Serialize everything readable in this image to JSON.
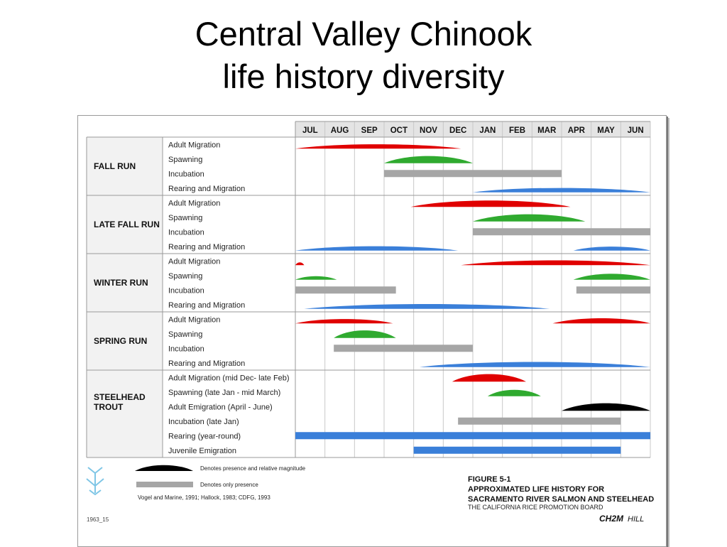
{
  "slide": {
    "title_line1": "Central Valley Chinook",
    "title_line2": "life history diversity"
  },
  "chart_data": {
    "type": "gantt",
    "months": [
      "JUL",
      "AUG",
      "SEP",
      "OCT",
      "NOV",
      "DEC",
      "JAN",
      "FEB",
      "MAR",
      "APR",
      "MAY",
      "JUN"
    ],
    "colors": {
      "adult_migration": "#e00000",
      "spawning": "#2faa2f",
      "incubation": "#a6a6a6",
      "rearing": "#3a7fd9",
      "steelhead_emigration": "#000000"
    },
    "groups": [
      {
        "name": "FALL RUN",
        "rows": [
          {
            "label": "Adult Migration",
            "bars": [
              {
                "kind": "hump",
                "color": "adult_migration",
                "start": 0.0,
                "end": 5.6,
                "height": 0.55
              }
            ]
          },
          {
            "label": "Spawning",
            "bars": [
              {
                "kind": "hump",
                "color": "spawning",
                "start": 3.0,
                "end": 6.0,
                "height": 0.9
              }
            ]
          },
          {
            "label": "Incubation",
            "bars": [
              {
                "kind": "band",
                "color": "incubation",
                "start": 3.0,
                "end": 9.0
              }
            ]
          },
          {
            "label": "Rearing and Migration",
            "bars": [
              {
                "kind": "hump",
                "color": "rearing",
                "start": 6.0,
                "end": 12.0,
                "height": 0.55
              }
            ]
          }
        ]
      },
      {
        "name": "LATE FALL RUN",
        "rows": [
          {
            "label": "Adult Migration",
            "bars": [
              {
                "kind": "hump",
                "color": "adult_migration",
                "start": 3.9,
                "end": 9.3,
                "height": 0.8
              }
            ]
          },
          {
            "label": "Spawning",
            "bars": [
              {
                "kind": "hump",
                "color": "spawning",
                "start": 6.0,
                "end": 9.8,
                "height": 0.9
              }
            ]
          },
          {
            "label": "Incubation",
            "bars": [
              {
                "kind": "band",
                "color": "incubation",
                "start": 6.0,
                "end": 12.0
              }
            ]
          },
          {
            "label": "Rearing and Migration",
            "bars": [
              {
                "kind": "hump",
                "color": "rearing",
                "start": 0.0,
                "end": 5.5,
                "height": 0.55
              },
              {
                "kind": "hump",
                "color": "rearing",
                "start": 9.4,
                "end": 12.0,
                "height": 0.5
              }
            ]
          }
        ]
      },
      {
        "name": "WINTER RUN",
        "rows": [
          {
            "label": "Adult Migration",
            "bars": [
              {
                "kind": "hump",
                "color": "adult_migration",
                "start": 0.0,
                "end": 0.3,
                "height": 0.35
              },
              {
                "kind": "hump",
                "color": "adult_migration",
                "start": 5.6,
                "end": 12.0,
                "height": 0.6
              }
            ]
          },
          {
            "label": "Spawning",
            "bars": [
              {
                "kind": "hump",
                "color": "spawning",
                "start": 0.0,
                "end": 1.4,
                "height": 0.45
              },
              {
                "kind": "hump",
                "color": "spawning",
                "start": 9.4,
                "end": 12.0,
                "height": 0.75
              }
            ]
          },
          {
            "label": "Incubation",
            "bars": [
              {
                "kind": "band",
                "color": "incubation",
                "start": 0.0,
                "end": 3.4
              },
              {
                "kind": "band",
                "color": "incubation",
                "start": 9.5,
                "end": 12.0
              }
            ]
          },
          {
            "label": "Rearing and Migration",
            "bars": [
              {
                "kind": "hump",
                "color": "rearing",
                "start": 0.3,
                "end": 8.6,
                "height": 0.6
              }
            ]
          }
        ]
      },
      {
        "name": "SPRING RUN",
        "rows": [
          {
            "label": "Adult Migration",
            "bars": [
              {
                "kind": "hump",
                "color": "adult_migration",
                "start": 0.0,
                "end": 3.3,
                "height": 0.55
              },
              {
                "kind": "hump",
                "color": "adult_migration",
                "start": 8.7,
                "end": 12.0,
                "height": 0.65
              }
            ]
          },
          {
            "label": "Spawning",
            "bars": [
              {
                "kind": "hump",
                "color": "spawning",
                "start": 1.3,
                "end": 3.4,
                "height": 0.95
              }
            ]
          },
          {
            "label": "Incubation",
            "bars": [
              {
                "kind": "band",
                "color": "incubation",
                "start": 1.3,
                "end": 6.0
              }
            ]
          },
          {
            "label": "Rearing and Migration",
            "bars": [
              {
                "kind": "hump",
                "color": "rearing",
                "start": 4.2,
                "end": 12.0,
                "height": 0.65
              }
            ]
          }
        ]
      },
      {
        "name": "STEELHEAD TROUT",
        "rows": [
          {
            "label": "Adult Migration (mid Dec- late Feb)",
            "bars": [
              {
                "kind": "hump",
                "color": "adult_migration",
                "start": 5.3,
                "end": 7.8,
                "height": 0.95
              }
            ]
          },
          {
            "label": "Spawning (late Jan - mid March)",
            "bars": [
              {
                "kind": "hump",
                "color": "spawning",
                "start": 6.5,
                "end": 8.3,
                "height": 0.8
              }
            ]
          },
          {
            "label": "Adult Emigration (April - June)",
            "bars": [
              {
                "kind": "hump",
                "color": "steelhead_emigration",
                "start": 9.0,
                "end": 12.0,
                "height": 0.95
              }
            ]
          },
          {
            "label": "Incubation (late Jan)",
            "bars": [
              {
                "kind": "band",
                "color": "incubation",
                "start": 5.5,
                "end": 11.0
              }
            ]
          },
          {
            "label": "Rearing (year-round)",
            "bars": [
              {
                "kind": "band",
                "color": "rearing",
                "start": 0.0,
                "end": 12.0
              }
            ]
          },
          {
            "label": "Juvenile Emigration",
            "bars": [
              {
                "kind": "band",
                "color": "rearing",
                "start": 4.0,
                "end": 11.0
              }
            ]
          }
        ]
      }
    ],
    "legend": {
      "magnitude_text": "Denotes presence and relative magnitude",
      "presence_text": "Denotes only presence",
      "sources": "Vogel and Marine, 1991; Hallock, 1983; CDFG, 1993",
      "code": "1963_15"
    },
    "caption": {
      "line1": "FIGURE 5-1",
      "line2": "APPROXIMATED LIFE HISTORY FOR",
      "line3": "SACRAMENTO  RIVER SALMON AND STEELHEAD",
      "line4": "THE CALIFORNIA RICE PROMOTION BOARD"
    },
    "brand": {
      "name": "CH2M",
      "suffix": "HILL"
    }
  }
}
